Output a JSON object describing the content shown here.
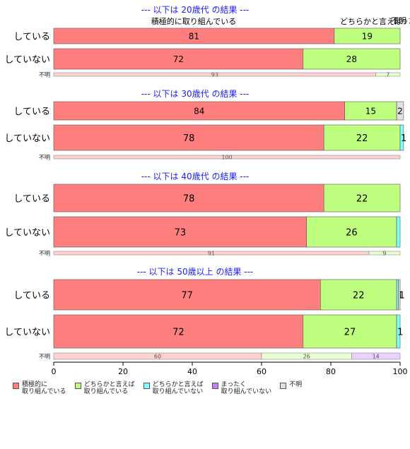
{
  "chart_data": {
    "type": "bar",
    "orientation": "horizontal",
    "stacked": true,
    "xlim": [
      0,
      100
    ],
    "x_ticks": [
      "0",
      "20",
      "40",
      "60",
      "80",
      "100"
    ],
    "top_annotations": [
      "積極的に取り組んでいる",
      "どちらかと言えば",
      "不明",
      "まった"
    ],
    "legend": {
      "position": "bottom",
      "entries": [
        {
          "label": "積極的に\n取り組んでいる",
          "color": "#FF7F7F"
        },
        {
          "label": "どちらかと言えば\n取り組んでいる",
          "color": "#BFFF7F"
        },
        {
          "label": "どちらかと言えば\n取り組んでいない",
          "color": "#7FFFFF"
        },
        {
          "label": "まったく\n取り組んでいない",
          "color": "#BF7FFF"
        },
        {
          "label": "不明",
          "color": "#E0E0E0"
        }
      ]
    },
    "panels": [
      {
        "title": "--- 以下は 20歳代 の結果 ---",
        "bars": [
          {
            "label": "している",
            "values": [
              81,
              19,
              0,
              0,
              0
            ],
            "value_labels": [
              "81",
              "19",
              "",
              "",
              ""
            ]
          },
          {
            "label": "していない",
            "values": [
              72,
              28,
              0,
              0,
              0
            ],
            "value_labels": [
              "72",
              "28",
              "",
              "",
              ""
            ]
          }
        ],
        "unknown": {
          "label": "不明",
          "values": [
            93,
            7,
            0,
            0,
            0
          ],
          "value_labels": [
            "93",
            "7",
            "",
            "",
            ""
          ]
        }
      },
      {
        "title": "--- 以下は 30歳代 の結果 ---",
        "bars": [
          {
            "label": "している",
            "values": [
              84,
              15,
              0,
              0,
              2
            ],
            "value_labels": [
              "84",
              "15",
              "",
              "",
              "2"
            ]
          },
          {
            "label": "していない",
            "values": [
              78,
              22,
              1,
              0,
              0
            ],
            "value_labels": [
              "78",
              "22",
              "1",
              "",
              ""
            ]
          }
        ],
        "unknown": {
          "label": "不明",
          "values": [
            100,
            0,
            0,
            0,
            0
          ],
          "value_labels": [
            "100",
            "",
            "",
            "",
            ""
          ]
        }
      },
      {
        "title": "--- 以下は 40歳代 の結果 ---",
        "bars": [
          {
            "label": "している",
            "values": [
              78,
              22,
              0,
              0,
              0
            ],
            "value_labels": [
              "78",
              "22",
              "",
              "",
              ""
            ]
          },
          {
            "label": "していない",
            "values": [
              73,
              26,
              1,
              0,
              0
            ],
            "value_labels": [
              "73",
              "26",
              "",
              "",
              ""
            ]
          }
        ],
        "unknown": {
          "label": "不明",
          "values": [
            91,
            9,
            0,
            0,
            0
          ],
          "value_labels": [
            "91",
            "9",
            "",
            "",
            ""
          ]
        }
      },
      {
        "title": "--- 以下は 50歳以上 の結果 ---",
        "bars": [
          {
            "label": "している",
            "values": [
              77,
              22,
              0.5,
              0,
              0.5
            ],
            "value_labels": [
              "77",
              "22",
              "1",
              "",
              "1"
            ]
          },
          {
            "label": "していない",
            "values": [
              72,
              27,
              1,
              0,
              0
            ],
            "value_labels": [
              "72",
              "27",
              "1",
              "",
              ""
            ]
          }
        ],
        "unknown": {
          "label": "不明",
          "values": [
            60,
            26,
            0,
            14,
            0
          ],
          "value_labels": [
            "60",
            "26",
            "",
            "14",
            ""
          ]
        }
      }
    ]
  }
}
